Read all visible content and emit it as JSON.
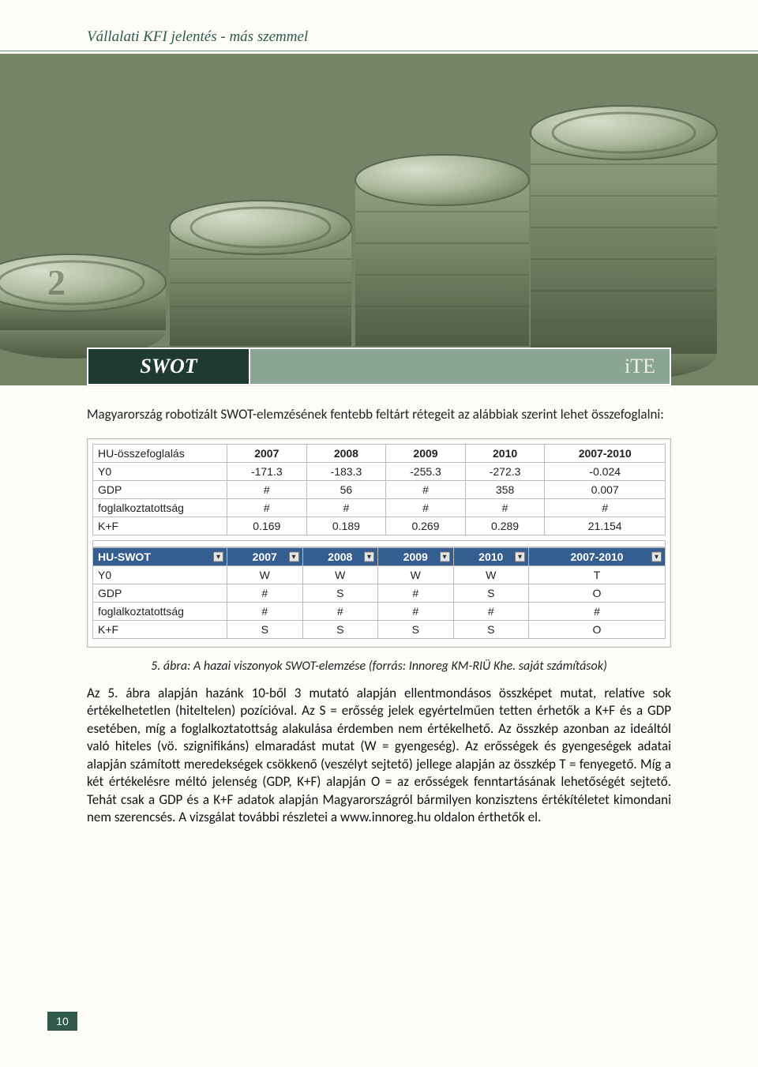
{
  "page": {
    "header": "Vállalati KFI jelentés - más szemmel",
    "page_number": "10",
    "colors": {
      "header_text": "#2f5a4d",
      "rule": "#6b8b7d",
      "swot_dark": "#1f3a2e",
      "swot_light": "#89a492",
      "table_header_dark": "#345e8f",
      "page_bg": "#fdfcf8"
    }
  },
  "swot_bar": {
    "left": "SWOT",
    "right": "iTE"
  },
  "intro": "Magyarország robotizált SWOT-elemzésének fentebb feltárt rétegeit az alábbiak szerint lehet összefoglalni:",
  "table1": {
    "headers": [
      "HU-összefoglalás",
      "2007",
      "2008",
      "2009",
      "2010",
      "2007-2010"
    ],
    "rows": [
      [
        "Y0",
        "-171.3",
        "-183.3",
        "-255.3",
        "-272.3",
        "-0.024"
      ],
      [
        "GDP",
        "#",
        "56",
        "#",
        "358",
        "0.007"
      ],
      [
        "foglalkoztatottság",
        "#",
        "#",
        "#",
        "#",
        "#"
      ],
      [
        "K+F",
        "0.169",
        "0.189",
        "0.269",
        "0.289",
        "21.154"
      ]
    ]
  },
  "table2": {
    "headers": [
      "HU-SWOT",
      "2007",
      "2008",
      "2009",
      "2010",
      "2007-2010"
    ],
    "rows": [
      [
        "Y0",
        "W",
        "W",
        "W",
        "W",
        "T"
      ],
      [
        "GDP",
        "#",
        "S",
        "#",
        "S",
        "O"
      ],
      [
        "foglalkoztatottság",
        "#",
        "#",
        "#",
        "#",
        "#"
      ],
      [
        "K+F",
        "S",
        "S",
        "S",
        "S",
        "O"
      ]
    ]
  },
  "caption": "5. ábra: A hazai viszonyok SWOT-elemzése (forrás: Innoreg KM-RIÜ Khe. saját számítások)",
  "body": "Az 5. ábra alapján hazánk 10-ből 3 mutató alapján ellentmondásos összképet mutat, relatíve sok értékelhetetlen (hiteltelen) pozícióval. Az S = erősség jelek egyértelműen tetten érhetők a K+F és a GDP esetében, míg a foglalkoztatottság alakulása érdemben nem értékelhető. Az összkép azonban az ideáltól való hiteles (vö. szignifikáns) elmaradást mutat (W = gyengeség). Az erősségek és gyengeségek adatai alapján számított meredekségek csökkenő (veszélyt sejtető) jellege alapján az összkép T = fenyegető. Míg a két értékelésre méltó jelenség (GDP, K+F) alapján O = az erősségek fenntartásának lehetőségét sejtető. Tehát csak a GDP és a K+F adatok alapján Magyarországról bármilyen konzisztens értékítéletet kimondani nem szerencsés. A vizsgálat további részletei a www.innoreg.hu oldalon érthetők el.",
  "hero": {
    "description": "stacked-forint-coins-photo",
    "coin_face": "#c8d2c0",
    "coin_edge": "#6b7a5a",
    "coin_shadow": "#3e4a36",
    "highlight": "#e8eedc"
  }
}
